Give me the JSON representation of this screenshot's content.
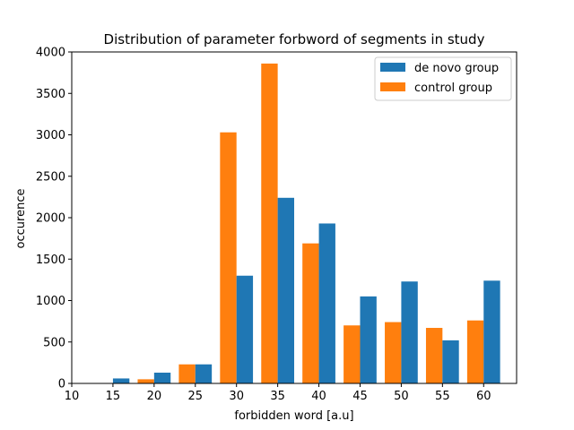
{
  "chart_data": {
    "type": "bar",
    "title": "Distribution of parameter forbword of segments in study",
    "xlabel": "forbidden word [a.u]",
    "ylabel": "occurence",
    "xlim": [
      10,
      64
    ],
    "ylim": [
      0,
      4000
    ],
    "xticks": [
      10,
      15,
      20,
      25,
      30,
      35,
      40,
      45,
      50,
      55,
      60
    ],
    "yticks": [
      0,
      500,
      1000,
      1500,
      2000,
      2500,
      3000,
      3500,
      4000
    ],
    "bin_left_edges": [
      12.5,
      17.5,
      22.5,
      27.5,
      32.5,
      37.5,
      42.5,
      47.5,
      52.5,
      57.5
    ],
    "bin_width": 5,
    "legend_position": "top-right",
    "grid": false,
    "series": [
      {
        "name": "de novo group",
        "color": "#1f77b4",
        "values": [
          60,
          130,
          230,
          1300,
          2240,
          1930,
          1050,
          1230,
          520,
          1240
        ]
      },
      {
        "name": "control group",
        "color": "#ff7f0e",
        "values": [
          0,
          50,
          230,
          3030,
          3860,
          1690,
          700,
          740,
          670,
          760
        ]
      }
    ]
  }
}
